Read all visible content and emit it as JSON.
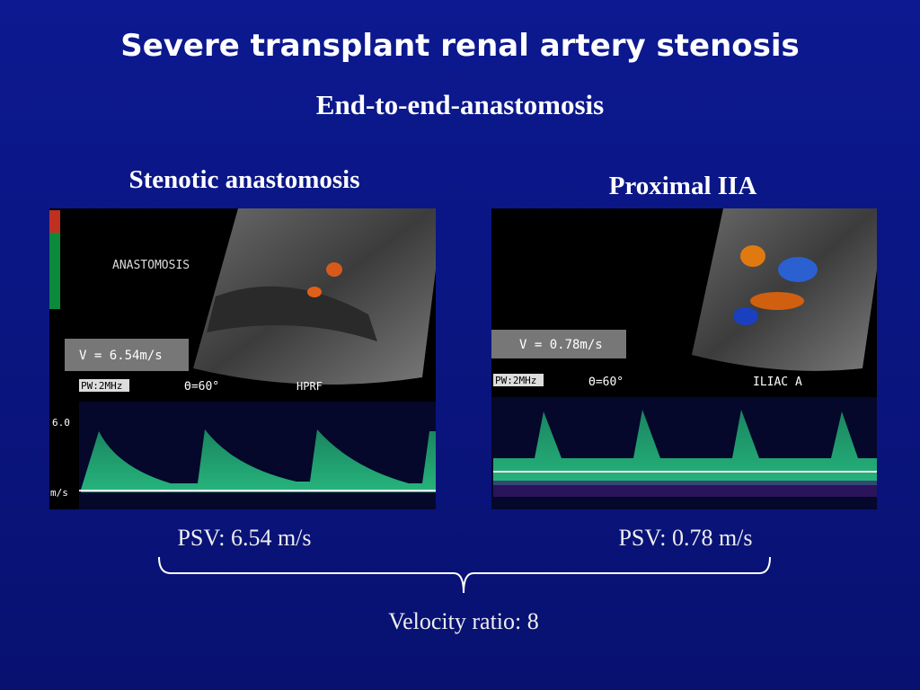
{
  "title": "Severe transplant renal artery stenosis",
  "subtitle": "End-to-end-anastomosis",
  "left": {
    "heading": "Stenotic anastomosis",
    "image": {
      "site_label": "ANASTOMOSIS",
      "velocity": "V = 6.54m/s",
      "mode": "PW:2MHz",
      "angle": "Θ=60°",
      "setting": "HPRF",
      "scale": "6.0",
      "unit": "m/s"
    },
    "psv": "PSV: 6.54 m/s"
  },
  "right": {
    "heading": "Proximal IIA",
    "image": {
      "velocity": "V = 0.78m/s",
      "mode": "PW:2MHz",
      "angle": "Θ=60°",
      "site_label": "ILIAC A"
    },
    "psv": "PSV: 0.78 m/s"
  },
  "ratio": "Velocity ratio: 8"
}
